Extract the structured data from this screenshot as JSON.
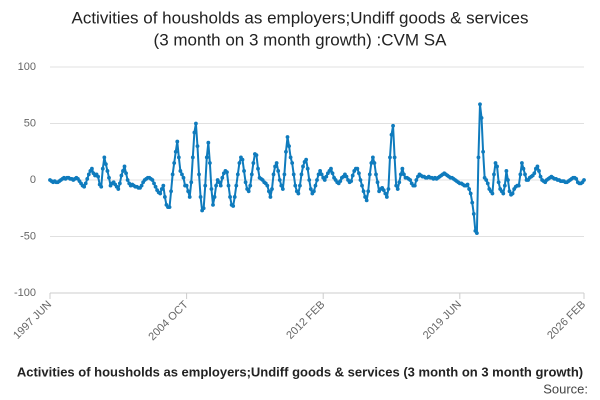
{
  "chart_data": {
    "type": "line",
    "title": [
      "Activities of housholds as employers;Undiff goods & services",
      "(3 month on 3 month growth) :CVM SA"
    ],
    "x_label": "Activities of housholds as employers;Undiff goods & services (3 month on 3 month growth)",
    "source": "Source:",
    "ylim": [
      -100,
      100
    ],
    "yticks": [
      -100,
      -50,
      0,
      50,
      100
    ],
    "grid": true,
    "categories": [
      "1997 JUN",
      null,
      null,
      null,
      null,
      null,
      null,
      null,
      null,
      null,
      null,
      null,
      null,
      null,
      null,
      null,
      null,
      null,
      null,
      null,
      null,
      null,
      null,
      null,
      null,
      null,
      null,
      null,
      null,
      null,
      null,
      null,
      null,
      null,
      null,
      null,
      null,
      null,
      null,
      null,
      null,
      null,
      null,
      null,
      null,
      null,
      null,
      null,
      null,
      null,
      null,
      null,
      null,
      null,
      null,
      null,
      null,
      null,
      null,
      null,
      null,
      null,
      null,
      null,
      null,
      null,
      null,
      null,
      null,
      null,
      null,
      null,
      null,
      null,
      null,
      null,
      null,
      null,
      null,
      null,
      null,
      null,
      null,
      null,
      null,
      null,
      null,
      null,
      "2004 OCT",
      null,
      null,
      null,
      null,
      null,
      null,
      null,
      null,
      null,
      null,
      null,
      null,
      null,
      null,
      null,
      null,
      null,
      null,
      null,
      null,
      null,
      null,
      null,
      null,
      null,
      null,
      null,
      null,
      null,
      null,
      null,
      null,
      null,
      null,
      null,
      null,
      null,
      null,
      null,
      null,
      null,
      null,
      null,
      null,
      null,
      null,
      null,
      null,
      null,
      null,
      null,
      null,
      null,
      null,
      null,
      null,
      null,
      null,
      null,
      null,
      null,
      null,
      null,
      null,
      null,
      null,
      null,
      null,
      null,
      null,
      null,
      null,
      null,
      null,
      null,
      null,
      null,
      null,
      null,
      null,
      null,
      null,
      null,
      null,
      null,
      null,
      null,
      "2012 FEB",
      null,
      null,
      null,
      null,
      null,
      null,
      null,
      null,
      null,
      null,
      null,
      null,
      null,
      null,
      null,
      null,
      null,
      null,
      null,
      null,
      null,
      null,
      null,
      null,
      null,
      null,
      null,
      null,
      null,
      null,
      null,
      null,
      null,
      null,
      null,
      null,
      null,
      null,
      null,
      null,
      null,
      null,
      null,
      null,
      null,
      null,
      null,
      null,
      null,
      null,
      null,
      null,
      null,
      null,
      null,
      null,
      null,
      null,
      null,
      null,
      null,
      null,
      null,
      null,
      null,
      null,
      null,
      null,
      null,
      null,
      null,
      null,
      null,
      null,
      null,
      null,
      null,
      null,
      null,
      null,
      null,
      null,
      null,
      null,
      null,
      null,
      null,
      "2019 JUN",
      null,
      null,
      null,
      null,
      null,
      null,
      null,
      null,
      null,
      null,
      null,
      null,
      null,
      null,
      null,
      null,
      null,
      null,
      null,
      null,
      null,
      null,
      null,
      null,
      null,
      null,
      null,
      null,
      null,
      null,
      null,
      null,
      null,
      null,
      null,
      null,
      null,
      null,
      null,
      null,
      null,
      null,
      null,
      null,
      null,
      null,
      null,
      null,
      null,
      null,
      null,
      null,
      null,
      null,
      null,
      null,
      null,
      null,
      null,
      null,
      null,
      null,
      null,
      null,
      null,
      null,
      null,
      null,
      null,
      null,
      null,
      null,
      null,
      null,
      null,
      null,
      null,
      null,
      null,
      "2026 FEB"
    ],
    "series": [
      {
        "color": "#0f7bbd",
        "values": [
          0,
          -1,
          -2,
          -1,
          -2,
          -2,
          -1,
          0,
          1,
          2,
          1,
          2,
          2,
          1,
          1,
          0,
          1,
          2,
          1,
          -1,
          -3,
          -5,
          -6,
          -3,
          1,
          5,
          8,
          10,
          6,
          4,
          5,
          3,
          -4,
          -6,
          10,
          20,
          14,
          8,
          2,
          -5,
          -3,
          -2,
          -4,
          -6,
          -8,
          -3,
          4,
          8,
          12,
          6,
          0,
          -3,
          -5,
          -4,
          -5,
          -6,
          -6,
          -7,
          -7,
          -5,
          -2,
          0,
          1,
          2,
          2,
          1,
          0,
          -3,
          -6,
          -9,
          -11,
          -12,
          -8,
          -5,
          -15,
          -22,
          -24,
          -24,
          -10,
          5,
          15,
          25,
          34,
          20,
          8,
          5,
          2,
          -5,
          -5,
          -10,
          -15,
          -2,
          20,
          42,
          50,
          30,
          5,
          -15,
          -27,
          -25,
          -5,
          20,
          33,
          15,
          -8,
          -22,
          -15,
          -5,
          0,
          -2,
          -5,
          2,
          6,
          8,
          7,
          -5,
          -15,
          -22,
          -23,
          -15,
          -5,
          5,
          15,
          20,
          18,
          8,
          -2,
          -8,
          -10,
          -5,
          5,
          15,
          23,
          22,
          10,
          2,
          1,
          0,
          -2,
          -3,
          -5,
          -10,
          -15,
          -8,
          5,
          12,
          15,
          8,
          0,
          -5,
          -8,
          5,
          25,
          38,
          30,
          20,
          15,
          5,
          -5,
          -10,
          -12,
          -5,
          5,
          12,
          16,
          18,
          10,
          0,
          -8,
          -12,
          -10,
          -5,
          0,
          5,
          8,
          5,
          2,
          0,
          3,
          6,
          8,
          10,
          6,
          2,
          0,
          -2,
          -3,
          -1,
          2,
          3,
          5,
          3,
          0,
          -2,
          -1,
          4,
          8,
          10,
          10,
          6,
          0,
          -5,
          -10,
          -15,
          -18,
          -10,
          5,
          15,
          20,
          15,
          5,
          -2,
          -10,
          -8,
          -7,
          -9,
          -12,
          -15,
          -8,
          20,
          40,
          48,
          20,
          -5,
          -8,
          -2,
          5,
          10,
          5,
          2,
          2,
          1,
          0,
          -3,
          -5,
          -5,
          0,
          3,
          5,
          4,
          3,
          3,
          2,
          2,
          3,
          2,
          2,
          1,
          2,
          1,
          2,
          3,
          4,
          5,
          6,
          5,
          4,
          3,
          2,
          2,
          1,
          0,
          -1,
          -2,
          -3,
          -3,
          -4,
          -5,
          -5,
          -4,
          -8,
          -12,
          -20,
          -30,
          -45,
          -47,
          20,
          67,
          55,
          25,
          2,
          0,
          -3,
          -8,
          -10,
          -12,
          5,
          15,
          12,
          -2,
          -8,
          -10,
          -12,
          -5,
          8,
          0,
          -10,
          -13,
          -12,
          -8,
          -6,
          -5,
          -5,
          5,
          15,
          10,
          5,
          0,
          0,
          2,
          3,
          4,
          6,
          10,
          12,
          8,
          3,
          0,
          -1,
          -2,
          0,
          1,
          2,
          3,
          2,
          1,
          1,
          0,
          0,
          -1,
          -1,
          -1,
          -2,
          -2,
          -1,
          0,
          1,
          2,
          2,
          1,
          -2,
          -3,
          -3,
          -2,
          0
        ]
      }
    ]
  }
}
